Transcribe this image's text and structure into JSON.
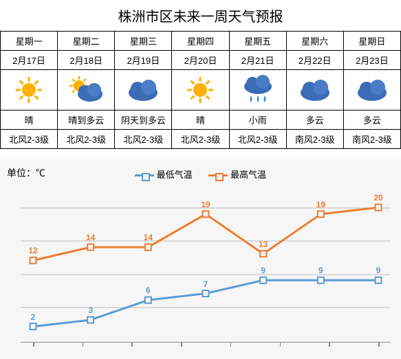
{
  "title": "株洲市区未来一周天气预报",
  "title_fontsize": 20,
  "table": {
    "days": [
      "星期一",
      "星期二",
      "星期三",
      "星期四",
      "星期五",
      "星期六",
      "星期日"
    ],
    "dates": [
      "2月17日",
      "2月18日",
      "2月19日",
      "2月20日",
      "2月21日",
      "2月22日",
      "2月23日"
    ],
    "icons": [
      "sun",
      "partly",
      "cloudy",
      "sun",
      "rain",
      "cloudy",
      "cloudy"
    ],
    "conditions": [
      "晴",
      "晴到多云",
      "阴天到多云",
      "晴",
      "小雨",
      "多云",
      "多云"
    ],
    "winds": [
      "北风2-3级",
      "北风2-3级",
      "北风2-3级",
      "北风2-3级",
      "北风2-3级",
      "南风2-3级",
      "南风2-3级"
    ]
  },
  "chart": {
    "unit_label": "单位：℃",
    "legend_low": "最低气温",
    "legend_high": "最高气温",
    "low_values": [
      2,
      3,
      6,
      7,
      9,
      9,
      9
    ],
    "high_values": [
      12,
      14,
      14,
      19,
      13,
      19,
      20
    ],
    "low_color": "#5b9bd5",
    "high_color": "#ed7d31",
    "y_min": 0,
    "y_max": 22,
    "grid_values": [
      5,
      10,
      15,
      20
    ],
    "grid_color": "#d9d9d9",
    "background_color": "#f6f6f6",
    "line_width": 3,
    "marker_size": 9,
    "label_fontsize": 12,
    "x_tick_marks": 8
  }
}
